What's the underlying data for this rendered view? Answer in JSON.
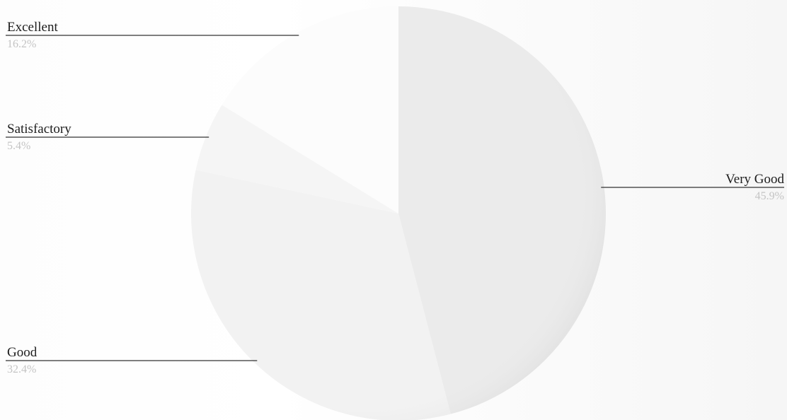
{
  "chart_data": {
    "type": "pie",
    "title": "",
    "start_angle_deg": 0,
    "direction": "clockwise",
    "slices": [
      {
        "label": "Very Good",
        "value": 45.9,
        "value_label": "45.9%",
        "color": "#ebebeb",
        "label_side": "right"
      },
      {
        "label": "Good",
        "value": 32.4,
        "value_label": "32.4%",
        "color": "#f2f2f2",
        "label_side": "left"
      },
      {
        "label": "Satisfactory",
        "value": 5.4,
        "value_label": "5.4%",
        "color": "#f5f5f5",
        "label_side": "left"
      },
      {
        "label": "Excellent",
        "value": 16.2,
        "value_label": "16.2%",
        "color": "#fcfcfc",
        "label_side": "left"
      }
    ],
    "legend": "none"
  }
}
